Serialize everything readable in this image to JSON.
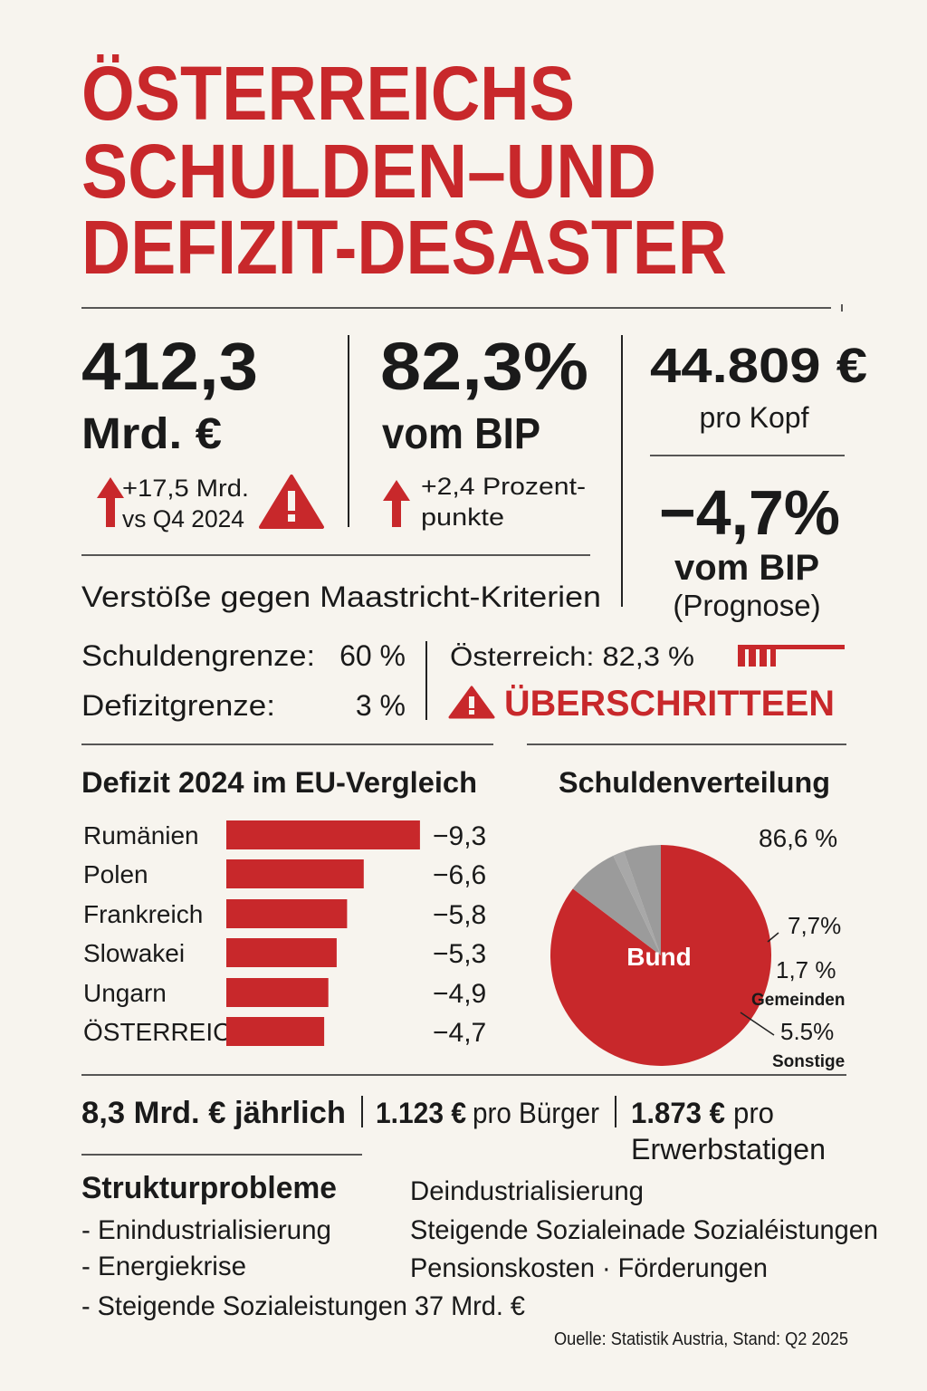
{
  "title": [
    "ÖSTERREICHS",
    "SCHULDEN–UND",
    "DEFIZIT-DESASTER"
  ],
  "debt": {
    "value": "412,3",
    "unit": "Mrd. €",
    "change": [
      "+17,5 Mrd.",
      "vs Q4 2024"
    ]
  },
  "ratio": {
    "value": "82,3%",
    "unit": "vom BIP",
    "change": [
      "+2,4 Prozent-",
      "punkte"
    ]
  },
  "per_capita": {
    "value": "44.809 €",
    "unit": "pro Kopf"
  },
  "deficit": {
    "value": "−4,7%",
    "unit": "vom BIP",
    "note": "(Prognose)"
  },
  "maastricht": {
    "heading": "Verstöße gegen Maastricht-Kriterien",
    "rows": [
      [
        "Schuldengrenze:",
        "60 %"
      ],
      [
        "Defizitgrenze:",
        "3 %"
      ]
    ],
    "austria": "Österreich: 82,3 %",
    "status": "ÜBERSCHRITTEEN"
  },
  "chart_data": [
    {
      "type": "bar",
      "title": "Defizit 2024 im EU-Vergleich",
      "categories": [
        "Rumänien",
        "Polen",
        "Frankreich",
        "Slowakei",
        "Ungarn",
        "ÖSTERREICH"
      ],
      "values": [
        -9.3,
        -6.6,
        -5.8,
        -5.3,
        -4.9,
        -4.7
      ],
      "value_labels": [
        "−9,3",
        "−6,6",
        "−5,8",
        "−5,3",
        "−4,9",
        "−4,7"
      ],
      "color": "#c8282b"
    },
    {
      "type": "pie",
      "title": "Schuldenverteilung",
      "categories": [
        "Bund",
        null,
        "Gemeinden",
        "Sonstige"
      ],
      "values": [
        86.6,
        7.7,
        1.7,
        5.5
      ],
      "value_labels": [
        "86,6 %",
        "7,7%",
        "1,7 %",
        "5.5%"
      ],
      "colors": [
        "#c8282b",
        "#9b9b9b",
        "#a8a8a8",
        "#9b9b9b"
      ]
    }
  ],
  "interest": {
    "total": "8,3 Mrd. € jährlich",
    "per_citizen": [
      "1.123 €",
      "pro Bürger"
    ],
    "per_worker": [
      "1.873 €",
      "pro",
      "Erwerbstatigen"
    ]
  },
  "structure": {
    "heading": "Strukturprobleme",
    "left": [
      "- Enindustrialisierung",
      "- Energiekrise",
      "- Steigende Sozialeistungen 37 Mrd. €"
    ],
    "right": [
      "Deindustrialisierung",
      "Steigende Sozialeinade Sozialéistungen",
      "Pensionskosten · Förderungen"
    ]
  },
  "source": "Ouelle: Statistik Austria, Stand: Q2 2025"
}
